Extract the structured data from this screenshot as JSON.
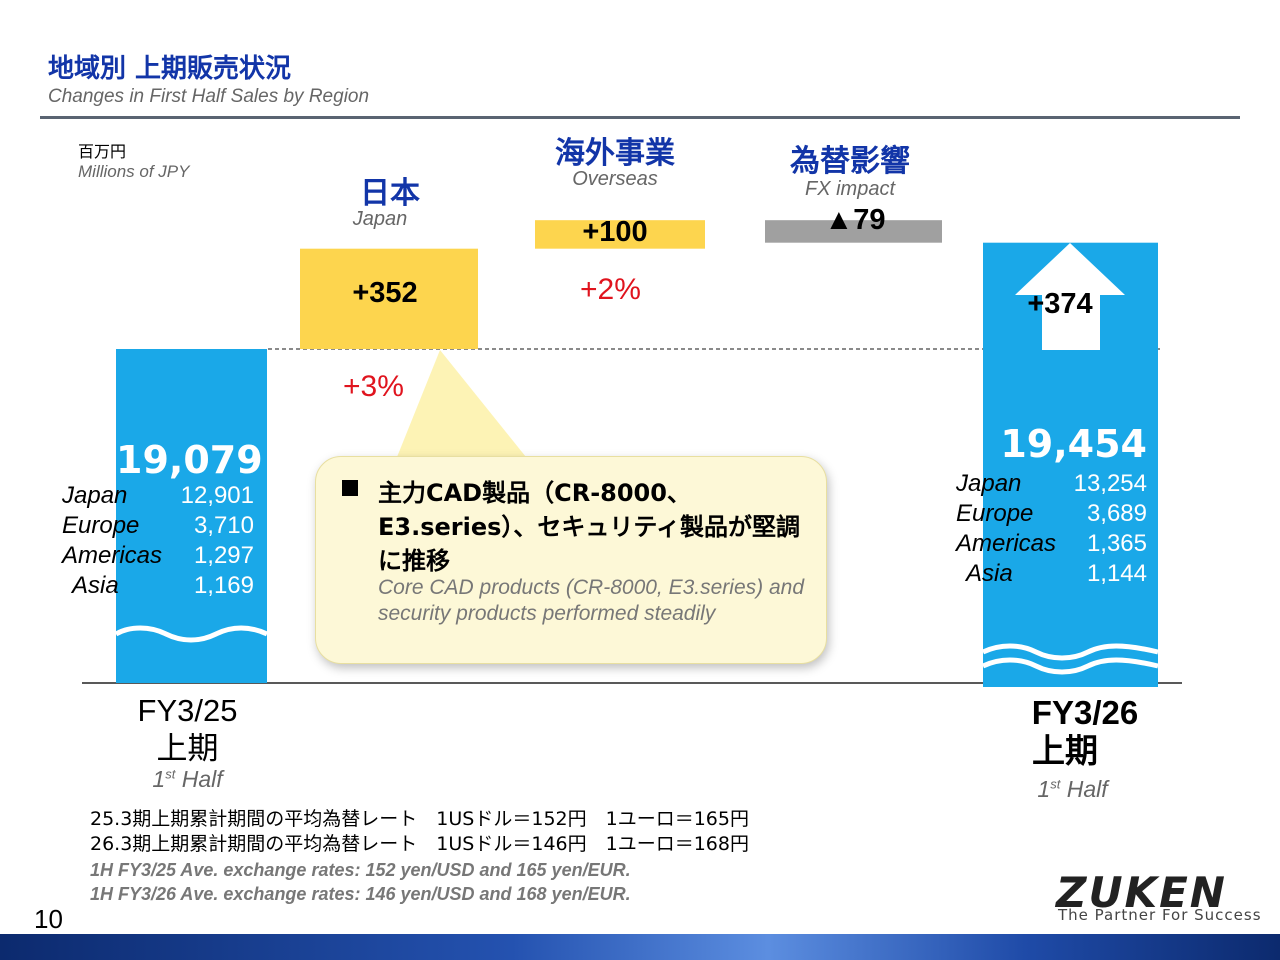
{
  "header": {
    "title_jp": "地域別 上期販売状況",
    "title_en": "Changes in First Half Sales by Region",
    "unit_jp": "百万円",
    "unit_en": "Millions of JPY"
  },
  "chart_data": {
    "type": "bar",
    "subtype": "waterfall",
    "categories": [
      "FY3/25 上期",
      "Japan",
      "Overseas",
      "FX impact",
      "FY3/26 上期"
    ],
    "values": [
      19079,
      352,
      100,
      -79,
      19454
    ],
    "start": {
      "period": "FY3/25",
      "period_jp": "上期",
      "half_prefix": "1",
      "half_sup": "st",
      "half_suffix": " Half",
      "total": "19,079",
      "regions": [
        {
          "name": "Japan",
          "value": "12,901"
        },
        {
          "name": "Europe",
          "value": "3,710"
        },
        {
          "name": "Americas",
          "value": "1,297"
        },
        {
          "name": "Asia",
          "value": "1,169"
        }
      ]
    },
    "japan": {
      "label_jp": "日本",
      "label_en": "Japan",
      "change": "+352",
      "pct": "+3%"
    },
    "overseas": {
      "label_jp": "海外事業",
      "label_en": "Overseas",
      "change": "+100",
      "pct": "+2%"
    },
    "fx": {
      "label_jp": "為替影響",
      "label_en": "FX impact",
      "change": "▲79"
    },
    "end": {
      "period": "FY3/26",
      "period_jp": "上期",
      "half_prefix": "1",
      "half_sup": "st",
      "half_suffix": " Half",
      "total": "19,454",
      "increase": "+374",
      "regions": [
        {
          "name": "Japan",
          "value": "13,254"
        },
        {
          "name": "Europe",
          "value": "3,689"
        },
        {
          "name": "Americas",
          "value": "1,365"
        },
        {
          "name": "Asia",
          "value": "1,144"
        }
      ]
    },
    "colors": {
      "total": "#1aa8e8",
      "japan": "#fdd54e",
      "overseas": "#fdd54e",
      "fx": "#a0a0a0",
      "pct": "#e0141e"
    }
  },
  "callout": {
    "text_jp": "主力CAD製品（CR-8000、E3.series）、セキュリティ製品が堅調に推移",
    "text_en": "Core CAD products (CR-8000, E3.series) and security products performed steadily"
  },
  "notes": {
    "jp_1": "25.3期上期累計期間の平均為替レート　1USドル＝152円　1ユーロ＝165円",
    "jp_2": "26.3期上期累計期間の平均為替レート　1USドル＝146円　1ユーロ＝168円",
    "en_1": "1H FY3/25 Ave. exchange rates: 152 yen/USD and 165 yen/EUR.",
    "en_2": "1H FY3/26 Ave. exchange rates: 146 yen/USD and 168 yen/EUR."
  },
  "footer": {
    "page_number": "10",
    "logo": "ZUKEN",
    "tagline": "The Partner For Success"
  }
}
